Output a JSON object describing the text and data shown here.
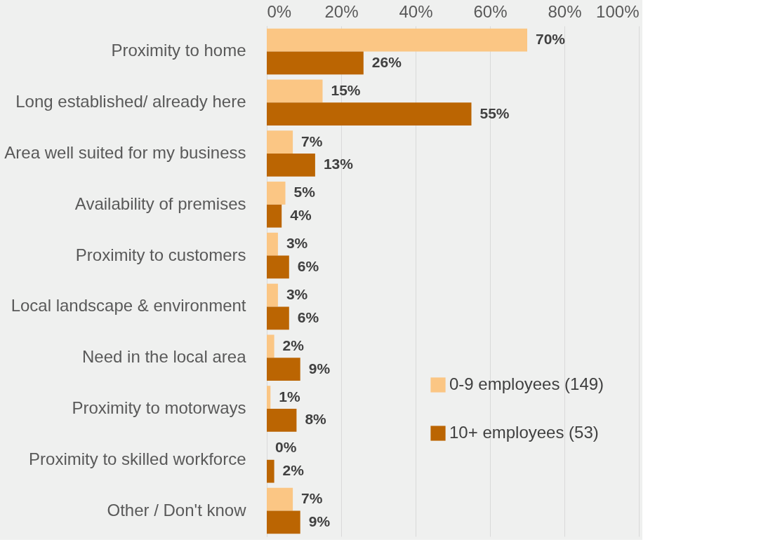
{
  "chart_data": {
    "type": "bar",
    "orientation": "horizontal",
    "categories": [
      "Proximity to home",
      "Long established/ already here",
      "Area well suited for my business",
      "Availability of premises",
      "Proximity to customers",
      "Local landscape & environment",
      "Need in the local area",
      "Proximity to motorways",
      "Proximity to skilled workforce",
      "Other / Don't know"
    ],
    "series": [
      {
        "name": "0-9 employees (149)",
        "color": "#fbc684",
        "values": [
          70,
          15,
          7,
          5,
          3,
          3,
          2,
          1,
          0,
          7
        ],
        "value_labels": [
          "70%",
          "15%",
          "7%",
          "5%",
          "3%",
          "3%",
          "2%",
          "1%",
          "0%",
          "7%"
        ]
      },
      {
        "name": "10+ employees (53)",
        "color": "#bb6502",
        "values": [
          26,
          55,
          13,
          4,
          6,
          6,
          9,
          8,
          2,
          9
        ],
        "value_labels": [
          "26%",
          "55%",
          "13%",
          "4%",
          "6%",
          "6%",
          "9%",
          "8%",
          "2%",
          "9%"
        ]
      }
    ],
    "xlim": [
      0,
      100
    ],
    "xticks": [
      {
        "value": 0,
        "label": "0%"
      },
      {
        "value": 20,
        "label": "20%"
      },
      {
        "value": 40,
        "label": "40%"
      },
      {
        "value": 60,
        "label": "60%"
      },
      {
        "value": 80,
        "label": "80%"
      },
      {
        "value": 100,
        "label": "100%"
      }
    ],
    "grid": "x",
    "legend": "bottom right"
  }
}
